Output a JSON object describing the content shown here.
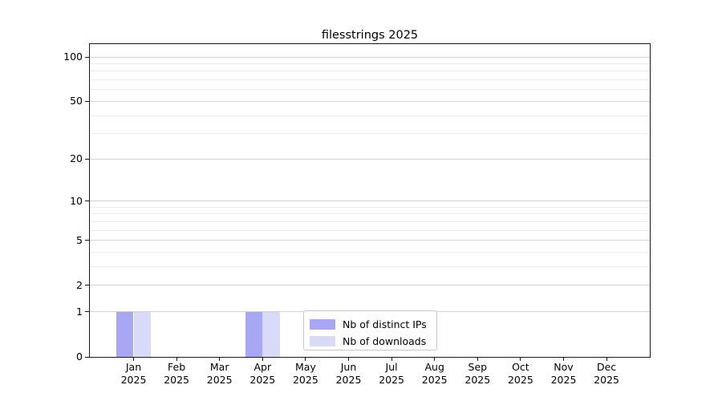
{
  "chart_data": {
    "type": "bar",
    "title": "filesstrings 2025",
    "x_tick_labels": [
      {
        "month": "Jan",
        "year": "2025"
      },
      {
        "month": "Feb",
        "year": "2025"
      },
      {
        "month": "Mar",
        "year": "2025"
      },
      {
        "month": "Apr",
        "year": "2025"
      },
      {
        "month": "May",
        "year": "2025"
      },
      {
        "month": "Jun",
        "year": "2025"
      },
      {
        "month": "Jul",
        "year": "2025"
      },
      {
        "month": "Aug",
        "year": "2025"
      },
      {
        "month": "Sep",
        "year": "2025"
      },
      {
        "month": "Oct",
        "year": "2025"
      },
      {
        "month": "Nov",
        "year": "2025"
      },
      {
        "month": "Dec",
        "year": "2025"
      }
    ],
    "series": [
      {
        "name": "Nb of distinct IPs",
        "color": "#a7a7f3",
        "values": [
          1,
          0,
          0,
          1,
          0,
          0,
          0,
          0,
          0,
          0,
          0,
          0
        ]
      },
      {
        "name": "Nb of downloads",
        "color": "#d9d9f8",
        "values": [
          1,
          0,
          0,
          1,
          0,
          0,
          0,
          0,
          0,
          0,
          0,
          0
        ]
      }
    ],
    "xlabel": "",
    "ylabel": "",
    "y_axis": {
      "scale": "log10(value+1)",
      "ticks": [
        0,
        1,
        2,
        5,
        10,
        20,
        50,
        100
      ],
      "minor_gridlines": [
        3,
        4,
        6,
        7,
        8,
        9,
        30,
        40,
        60,
        70,
        80,
        90
      ],
      "ylim": [
        0,
        122
      ]
    },
    "grid": true,
    "legend_position": "inside-bottom-center"
  },
  "colors": {
    "grid_major": "#d3d3d3",
    "grid_minor": "#ebebeb",
    "spine": "#1a1a1a",
    "legend_border": "#c9c9c9",
    "background": "#ffffff"
  }
}
